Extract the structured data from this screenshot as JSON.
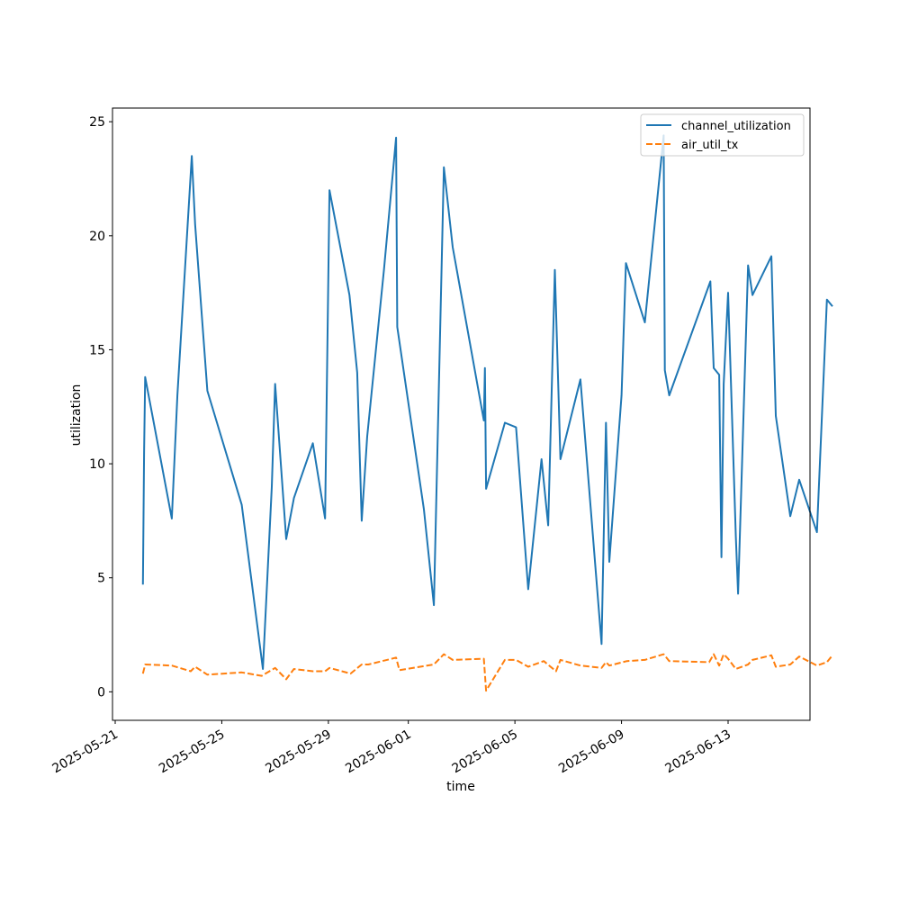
{
  "chart_data": {
    "type": "line",
    "title": "",
    "xlabel": "time",
    "ylabel": "utilization",
    "x_tick_labels": [
      "2025-05-21",
      "2025-05-25",
      "2025-05-29",
      "2025-06-01",
      "2025-06-05",
      "2025-06-09",
      "2025-06-13"
    ],
    "x_tick_dates": [
      "2025-05-21",
      "2025-05-25",
      "2025-05-29",
      "2025-06-01",
      "2025-06-05",
      "2025-06-09",
      "2025-06-13"
    ],
    "xlim": [
      "2025-05-21T00:00",
      "2025-06-16T00:00"
    ],
    "y_ticks": [
      0,
      5,
      10,
      15,
      20,
      25
    ],
    "ylim": [
      -1.25,
      25.6
    ],
    "grid": false,
    "legend_position": "top-right",
    "series": [
      {
        "name": "channel_utilization",
        "color": "#1f77b4",
        "line_style": "solid",
        "points": [
          [
            "2025-05-22T01:00",
            4.7
          ],
          [
            "2025-05-22T02:00",
            10.5
          ],
          [
            "2025-05-22T03:00",
            13.8
          ],
          [
            "2025-05-23T03:00",
            7.6
          ],
          [
            "2025-05-23T08:00",
            13.0
          ],
          [
            "2025-05-23T21:00",
            23.5
          ],
          [
            "2025-05-24T00:00",
            20.5
          ],
          [
            "2025-05-24T11:00",
            13.2
          ],
          [
            "2025-05-25T18:00",
            8.2
          ],
          [
            "2025-05-26T13:00",
            1.0
          ],
          [
            "2025-05-26T21:00",
            9.0
          ],
          [
            "2025-05-27T00:00",
            13.5
          ],
          [
            "2025-05-27T10:00",
            6.7
          ],
          [
            "2025-05-27T17:00",
            8.5
          ],
          [
            "2025-05-28T10:00",
            10.9
          ],
          [
            "2025-05-28T21:00",
            7.6
          ],
          [
            "2025-05-29T01:00",
            22.0
          ],
          [
            "2025-05-29T19:00",
            17.4
          ],
          [
            "2025-05-30T02:00",
            14.0
          ],
          [
            "2025-05-30T06:00",
            7.5
          ],
          [
            "2025-05-30T11:00",
            11.2
          ],
          [
            "2025-05-31T02:00",
            18.5
          ],
          [
            "2025-05-31T13:00",
            24.3
          ],
          [
            "2025-05-31T14:00",
            16.0
          ],
          [
            "2025-06-01T14:00",
            8.0
          ],
          [
            "2025-06-01T23:00",
            3.8
          ],
          [
            "2025-06-02T08:00",
            23.0
          ],
          [
            "2025-06-02T16:00",
            19.5
          ],
          [
            "2025-06-03T20:00",
            11.9
          ],
          [
            "2025-06-03T21:00",
            14.2
          ],
          [
            "2025-06-03T22:00",
            8.9
          ],
          [
            "2025-06-04T15:00",
            11.8
          ],
          [
            "2025-06-05T01:00",
            11.6
          ],
          [
            "2025-06-05T12:00",
            4.5
          ],
          [
            "2025-06-06T00:00",
            10.2
          ],
          [
            "2025-06-06T06:00",
            7.3
          ],
          [
            "2025-06-06T12:00",
            18.5
          ],
          [
            "2025-06-06T17:00",
            10.2
          ],
          [
            "2025-06-07T11:00",
            13.7
          ],
          [
            "2025-06-08T06:00",
            2.1
          ],
          [
            "2025-06-08T10:00",
            11.8
          ],
          [
            "2025-06-08T13:00",
            5.7
          ],
          [
            "2025-06-09T00:00",
            13.0
          ],
          [
            "2025-06-09T04:00",
            18.8
          ],
          [
            "2025-06-09T21:00",
            16.2
          ],
          [
            "2025-06-10T14:00",
            24.4
          ],
          [
            "2025-06-10T15:00",
            14.1
          ],
          [
            "2025-06-10T19:00",
            13.0
          ],
          [
            "2025-06-12T08:00",
            18.0
          ],
          [
            "2025-06-12T11:00",
            14.2
          ],
          [
            "2025-06-12T16:00",
            13.9
          ],
          [
            "2025-06-12T18:00",
            5.9
          ],
          [
            "2025-06-12T20:00",
            13.5
          ],
          [
            "2025-06-13T00:00",
            17.5
          ],
          [
            "2025-06-13T07:00",
            6.8
          ],
          [
            "2025-06-13T09:00",
            4.3
          ],
          [
            "2025-06-13T18:00",
            18.7
          ],
          [
            "2025-06-13T22:00",
            17.4
          ],
          [
            "2025-06-14T15:00",
            19.1
          ],
          [
            "2025-06-14T19:00",
            12.1
          ],
          [
            "2025-06-15T08:00",
            7.7
          ],
          [
            "2025-06-15T16:00",
            9.3
          ],
          [
            "2025-06-16T08:00",
            7.0
          ],
          [
            "2025-06-16T17:00",
            17.2
          ],
          [
            "2025-06-16T22:00",
            16.9
          ]
        ]
      },
      {
        "name": "air_util_tx",
        "color": "#ff7f0e",
        "line_style": "dashed",
        "points": [
          [
            "2025-05-22T01:00",
            0.8
          ],
          [
            "2025-05-22T03:00",
            1.2
          ],
          [
            "2025-05-23T03:00",
            1.15
          ],
          [
            "2025-05-23T20:00",
            0.9
          ],
          [
            "2025-05-24T00:00",
            1.1
          ],
          [
            "2025-05-24T11:00",
            0.75
          ],
          [
            "2025-05-25T18:00",
            0.85
          ],
          [
            "2025-05-26T12:00",
            0.7
          ],
          [
            "2025-05-27T00:00",
            1.05
          ],
          [
            "2025-05-27T10:00",
            0.55
          ],
          [
            "2025-05-27T17:00",
            1.0
          ],
          [
            "2025-05-28T10:00",
            0.9
          ],
          [
            "2025-05-28T21:00",
            0.9
          ],
          [
            "2025-05-29T01:00",
            1.05
          ],
          [
            "2025-05-29T20:00",
            0.8
          ],
          [
            "2025-05-30T06:00",
            1.2
          ],
          [
            "2025-05-30T12:00",
            1.2
          ],
          [
            "2025-05-31T13:00",
            1.5
          ],
          [
            "2025-05-31T16:00",
            0.95
          ],
          [
            "2025-06-01T23:00",
            1.2
          ],
          [
            "2025-06-02T08:00",
            1.65
          ],
          [
            "2025-06-02T16:00",
            1.4
          ],
          [
            "2025-06-03T20:00",
            1.45
          ],
          [
            "2025-06-03T22:00",
            0.05
          ],
          [
            "2025-06-04T15:00",
            1.4
          ],
          [
            "2025-06-05T01:00",
            1.4
          ],
          [
            "2025-06-05T12:00",
            1.1
          ],
          [
            "2025-06-06T02:00",
            1.35
          ],
          [
            "2025-06-06T13:00",
            0.9
          ],
          [
            "2025-06-06T17:00",
            1.4
          ],
          [
            "2025-06-07T11:00",
            1.15
          ],
          [
            "2025-06-08T06:00",
            1.05
          ],
          [
            "2025-06-08T10:00",
            1.3
          ],
          [
            "2025-06-08T13:00",
            1.15
          ],
          [
            "2025-06-09T05:00",
            1.35
          ],
          [
            "2025-06-09T21:00",
            1.4
          ],
          [
            "2025-06-10T14:00",
            1.65
          ],
          [
            "2025-06-10T19:00",
            1.35
          ],
          [
            "2025-06-12T07:00",
            1.3
          ],
          [
            "2025-06-12T11:00",
            1.65
          ],
          [
            "2025-06-12T16:00",
            1.15
          ],
          [
            "2025-06-12T20:00",
            1.65
          ],
          [
            "2025-06-13T00:00",
            1.45
          ],
          [
            "2025-06-13T07:00",
            1.0
          ],
          [
            "2025-06-13T18:00",
            1.2
          ],
          [
            "2025-06-13T22:00",
            1.4
          ],
          [
            "2025-06-14T15:00",
            1.6
          ],
          [
            "2025-06-14T19:00",
            1.1
          ],
          [
            "2025-06-15T08:00",
            1.2
          ],
          [
            "2025-06-15T16:00",
            1.55
          ],
          [
            "2025-06-16T08:00",
            1.15
          ],
          [
            "2025-06-16T17:00",
            1.3
          ],
          [
            "2025-06-16T22:00",
            1.6
          ]
        ]
      }
    ]
  }
}
